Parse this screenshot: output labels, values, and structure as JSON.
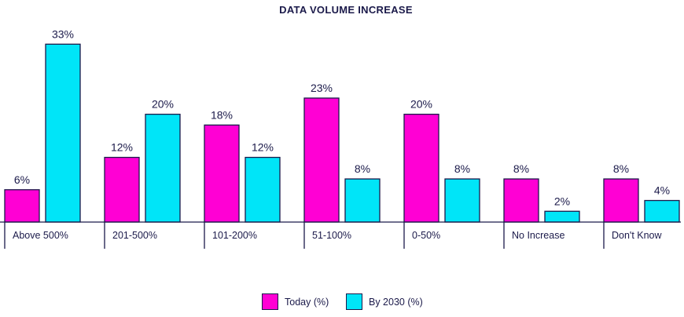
{
  "chart_data": {
    "type": "bar",
    "title": "DATA VOLUME INCREASE",
    "categories": [
      "Above 500%",
      "201-500%",
      "101-200%",
      "51-100%",
      "0-50%",
      "No Increase",
      "Don't Know"
    ],
    "series": [
      {
        "name": "Today (%)",
        "color": "#ff00d4",
        "values": [
          6,
          12,
          18,
          23,
          20,
          8,
          8
        ]
      },
      {
        "name": "By 2030 (%)",
        "color": "#00e5f8",
        "values": [
          33,
          20,
          12,
          8,
          8,
          2,
          4
        ]
      }
    ],
    "value_suffix": "%",
    "ylim": [
      0,
      33
    ],
    "grid": false,
    "legend": "bottom-center"
  }
}
